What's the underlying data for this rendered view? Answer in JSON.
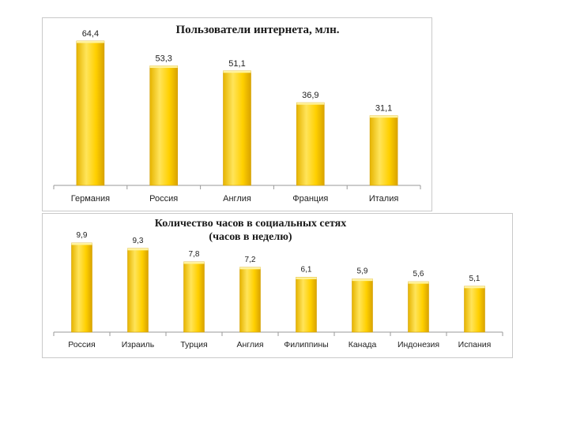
{
  "colors": {
    "bar_light": "#ffe24a",
    "bar_mid": "#ffcc00",
    "bar_dark": "#e0a800",
    "axis": "#9a9a9a"
  },
  "chart_data": [
    {
      "type": "bar",
      "title": "Пользователи интернета, млн.",
      "categories": [
        "Германия",
        "Россия",
        "Англия",
        "Франция",
        "Италия"
      ],
      "values": [
        64.4,
        53.3,
        51.1,
        36.9,
        31.1
      ],
      "value_labels": [
        "64,4",
        "53,3",
        "51,1",
        "36,9",
        "31,1"
      ],
      "ylim": [
        0,
        64.4
      ],
      "grid": false,
      "legend": "none"
    },
    {
      "type": "bar",
      "title": "Количество часов в социальных сетях",
      "subtitle": "(часов в неделю)",
      "categories": [
        "Россия",
        "Израиль",
        "Турция",
        "Англия",
        "Филиппины",
        "Канада",
        "Индонезия",
        "Испания"
      ],
      "values": [
        9.9,
        9.3,
        7.8,
        7.2,
        6.1,
        5.9,
        5.6,
        5.1
      ],
      "value_labels": [
        "9,9",
        "9,3",
        "7,8",
        "7,2",
        "6,1",
        "5,9",
        "5,6",
        "5,1"
      ],
      "ylim": [
        0,
        9.9
      ],
      "grid": false,
      "legend": "none"
    }
  ]
}
